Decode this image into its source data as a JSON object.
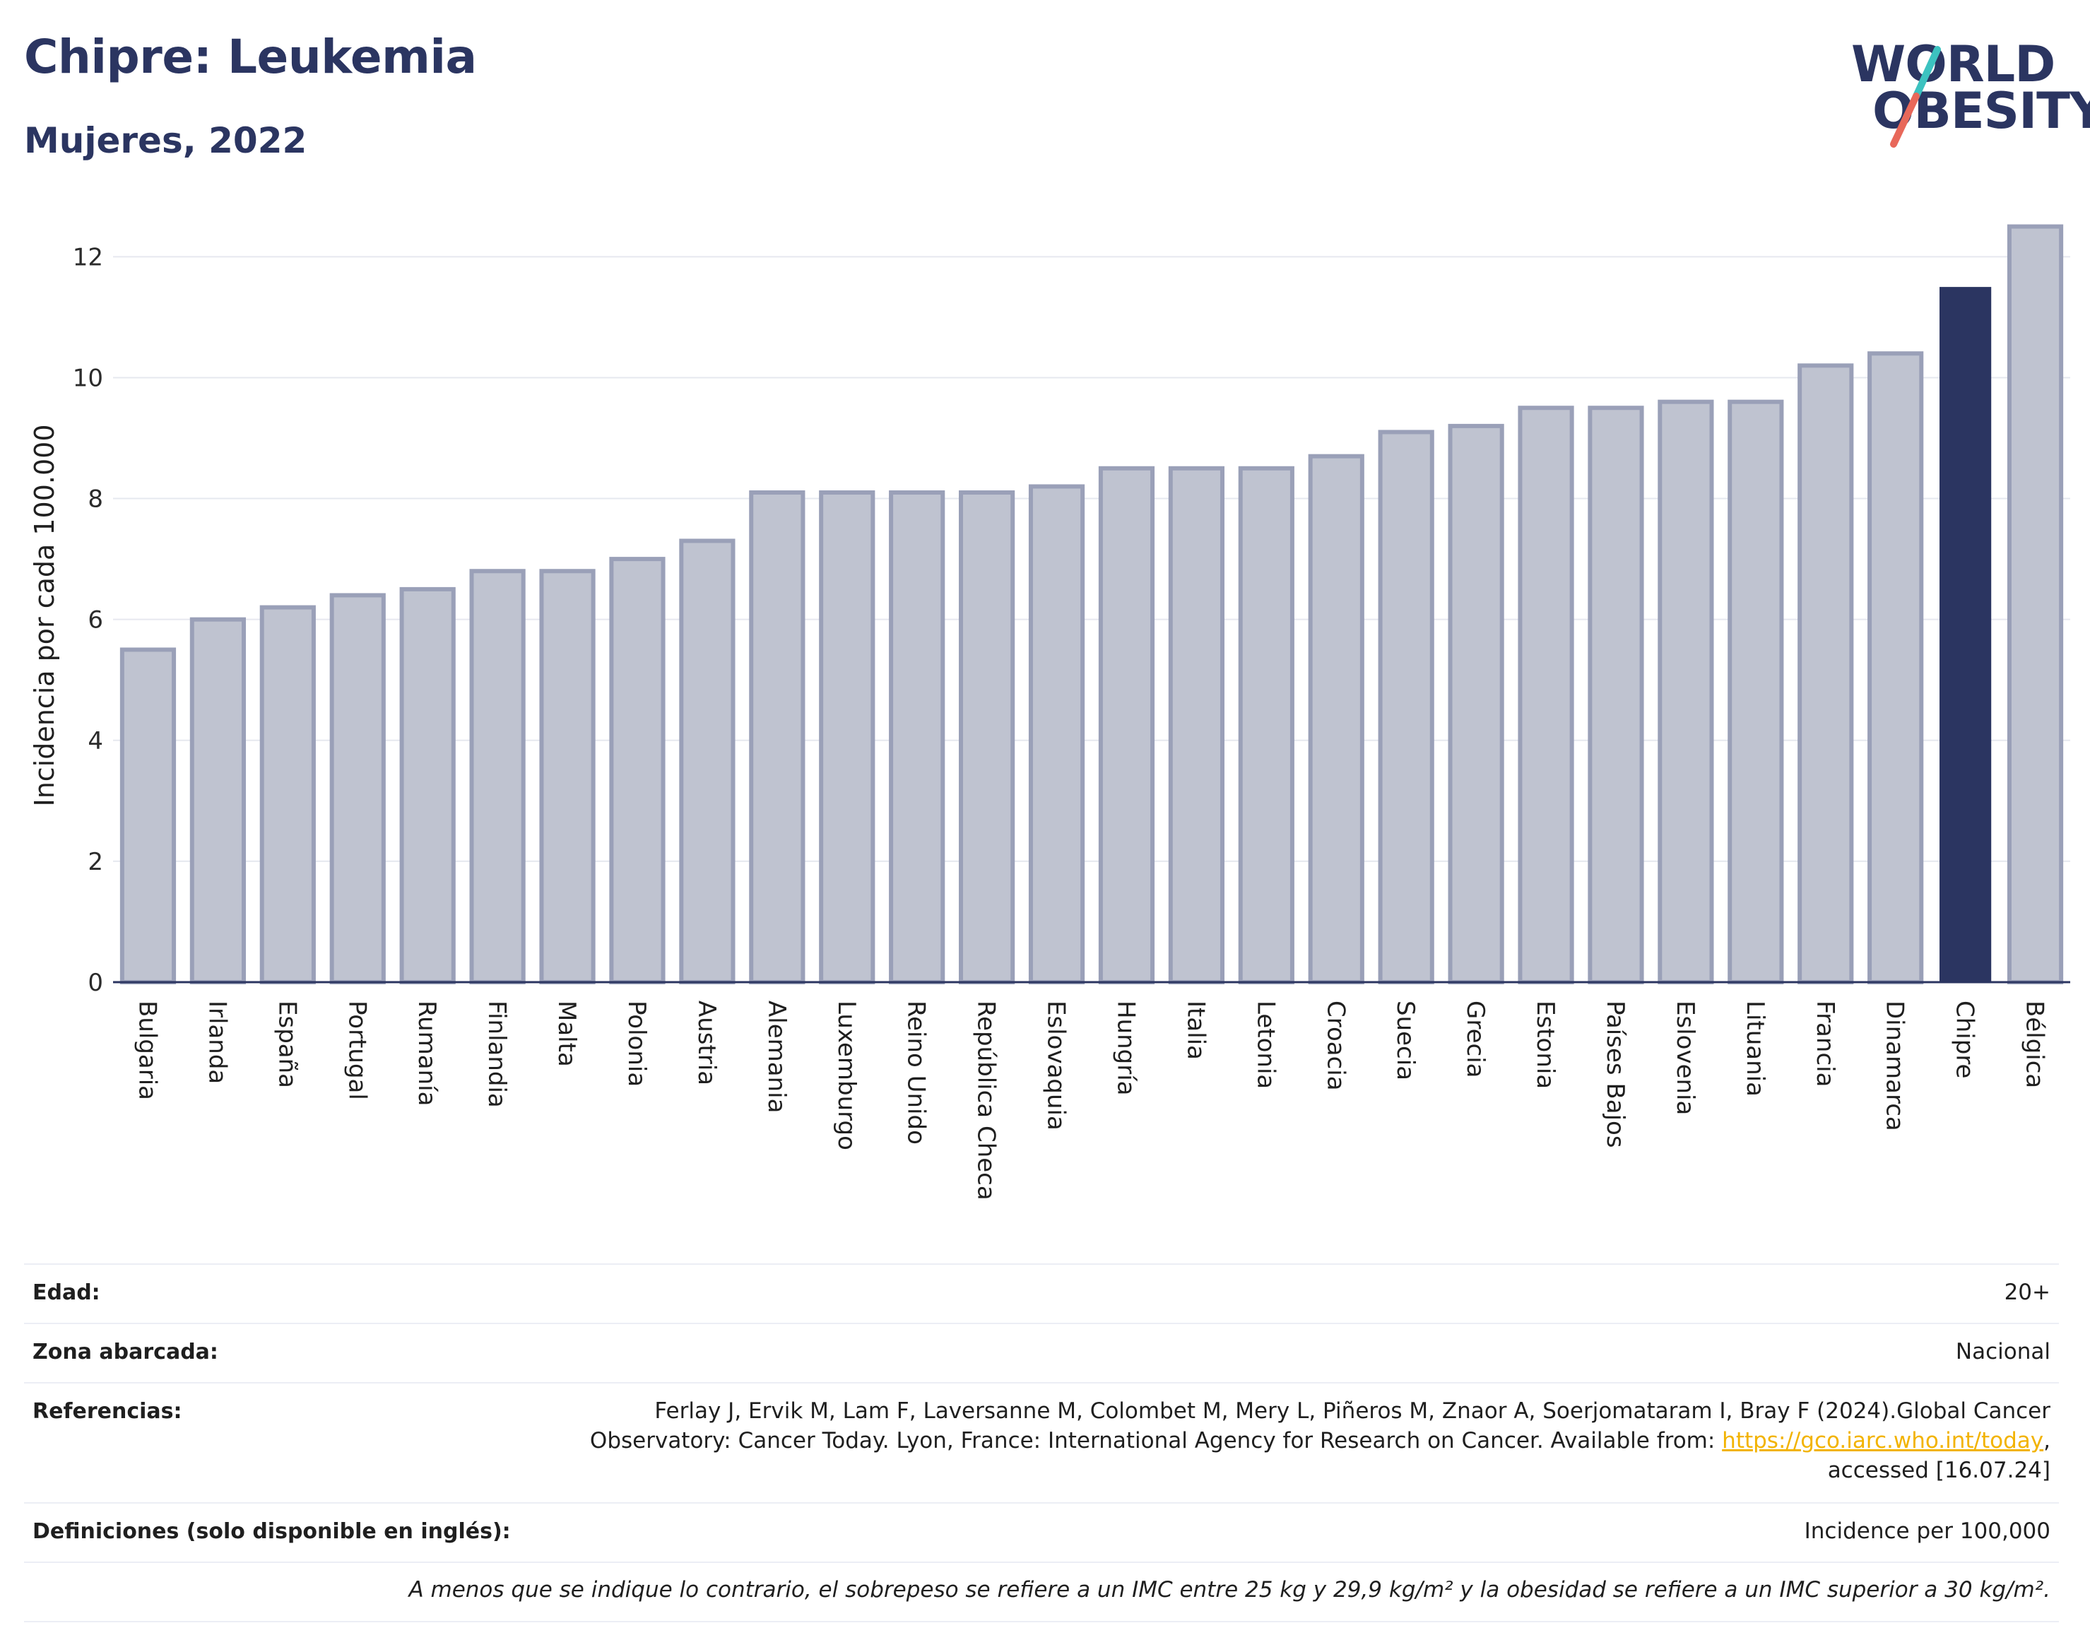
{
  "header": {
    "title": "Chipre: Leukemia",
    "subtitle": "Mujeres, 2022"
  },
  "logo": {
    "line1": "WORLD",
    "line2": "OBESITY",
    "slash_colors": [
      "#3cc2c0",
      "#e8685a"
    ]
  },
  "chart_data": {
    "type": "bar",
    "title": "Chipre: Leukemia",
    "subtitle": "Mujeres, 2022",
    "xlabel": "",
    "ylabel": "Incidencia por cada 100.000",
    "ylim": [
      0,
      12.6
    ],
    "yticks": [
      0,
      2,
      4,
      6,
      8,
      10,
      12
    ],
    "grid": true,
    "highlight": "Chipre",
    "colors": {
      "bar": "#bfc3d0",
      "bar_edge": "#9aa0b8",
      "highlight": "#2b3561"
    },
    "categories": [
      "Bulgaria",
      "Irlanda",
      "España",
      "Portugal",
      "Rumanía",
      "Finlandia",
      "Malta",
      "Polonia",
      "Austria",
      "Alemania",
      "Luxemburgo",
      "Reino Unido",
      "República Checa",
      "Eslovaquia",
      "Hungría",
      "Italia",
      "Letonia",
      "Croacia",
      "Suecia",
      "Grecia",
      "Estonia",
      "Países Bajos",
      "Eslovenia",
      "Lituania",
      "Francia",
      "Dinamarca",
      "Chipre",
      "Bélgica"
    ],
    "values": [
      5.5,
      6.0,
      6.2,
      6.4,
      6.5,
      6.8,
      6.8,
      7.0,
      7.3,
      8.1,
      8.1,
      8.1,
      8.1,
      8.2,
      8.5,
      8.5,
      8.5,
      8.7,
      9.1,
      9.2,
      9.5,
      9.5,
      9.6,
      9.6,
      10.2,
      10.4,
      11.5,
      12.5
    ]
  },
  "info": {
    "edad_label": "Edad:",
    "edad_value": "20+",
    "zona_label": "Zona abarcada:",
    "zona_value": "Nacional",
    "ref_label": "Referencias:",
    "ref_line1": "Ferlay J, Ervik M, Lam F, Laversanne M, Colombet M, Mery L, Piñeros M, Znaor A, Soerjomataram I, Bray F (2024).Global Cancer",
    "ref_line2_pre": "Observatory: Cancer Today. Lyon, France: International Agency for Research on Cancer. Available from: ",
    "ref_link": "https://gco.iarc.who.int/today",
    "ref_line2_post": ",",
    "ref_line3": "accessed [16.07.24]",
    "def_label": "Definiciones (solo disponible en inglés):",
    "def_value": "Incidence per 100,000",
    "note": "A menos que se indique lo contrario, el sobrepeso se refiere a un IMC entre 25 kg y 29,9 kg/m² y la obesidad se refiere a un IMC superior a 30 kg/m²."
  }
}
